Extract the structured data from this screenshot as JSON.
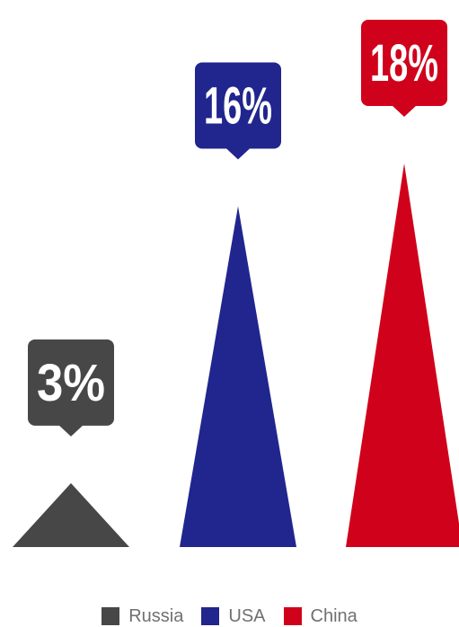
{
  "chart_data": {
    "type": "bar",
    "categories": [
      "Russia",
      "USA",
      "China"
    ],
    "values": [
      3,
      16,
      18
    ],
    "value_labels": [
      "3%",
      "16%",
      "18%"
    ],
    "series": [
      {
        "name": "Russia",
        "values": [
          3,
          null,
          null
        ],
        "color": "#474747"
      },
      {
        "name": "USA",
        "values": [
          null,
          16,
          null
        ],
        "color": "#21258e"
      },
      {
        "name": "China",
        "values": [
          null,
          null,
          18
        ],
        "color": "#d0021b"
      }
    ],
    "title": "",
    "xlabel": "",
    "ylabel": "",
    "ylim": [
      0,
      18
    ],
    "grid": false,
    "legend_position": "bottom",
    "mark_shape": "triangle"
  },
  "legend": {
    "items": [
      {
        "label": "Russia",
        "color": "#474747"
      },
      {
        "label": "USA",
        "color": "#21258e"
      },
      {
        "label": "China",
        "color": "#d0021b"
      }
    ]
  }
}
